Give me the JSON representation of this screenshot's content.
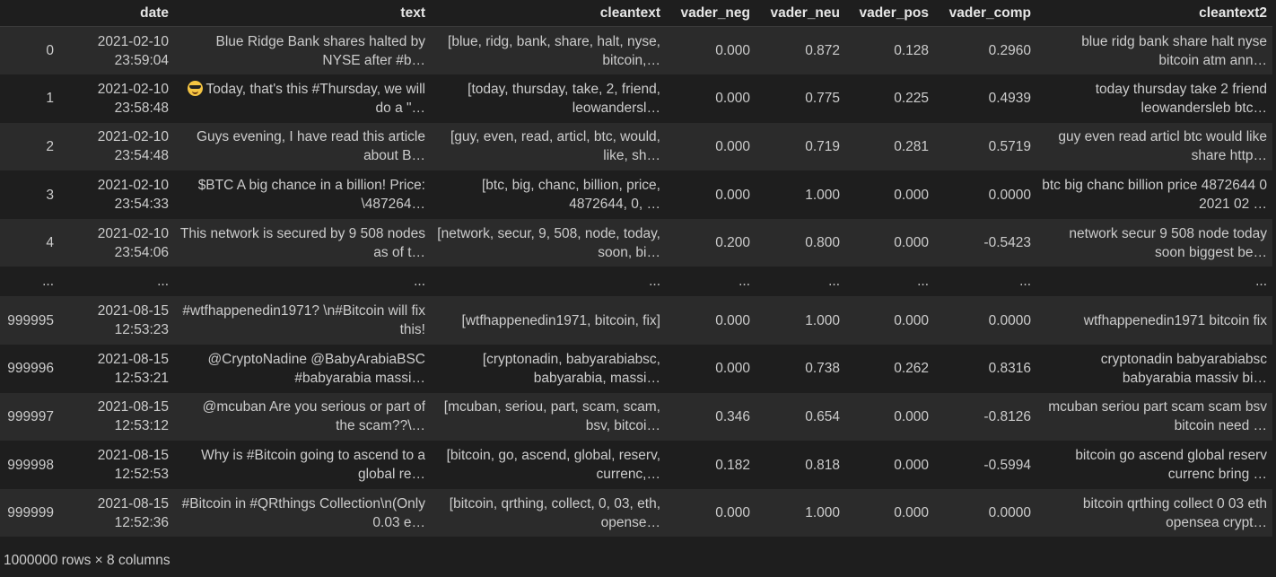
{
  "columns": [
    "",
    "date",
    "text",
    "cleantext",
    "vader_neg",
    "vader_neu",
    "vader_pos",
    "vader_comp",
    "cleantext2"
  ],
  "rows": [
    {
      "idx": "0",
      "date": "2021-02-10 23:59:04",
      "emoji": false,
      "text": "Blue Ridge Bank shares halted by NYSE after #b…",
      "cleantext": "[blue, ridg, bank, share, halt, nyse, bitcoin,…",
      "neg": "0.000",
      "neu": "0.872",
      "pos": "0.128",
      "comp": "0.2960",
      "cleantext2": "blue ridg bank share halt nyse bitcoin atm ann…"
    },
    {
      "idx": "1",
      "date": "2021-02-10 23:58:48",
      "emoji": true,
      "emoji_name": "sunglasses-emoji-icon",
      "text": "Today, that's this #Thursday, we will do a \"…",
      "cleantext": "[today, thursday, take, 2, friend, leowandersl…",
      "neg": "0.000",
      "neu": "0.775",
      "pos": "0.225",
      "comp": "0.4939",
      "cleantext2": "today thursday take 2 friend leowandersleb btc…"
    },
    {
      "idx": "2",
      "date": "2021-02-10 23:54:48",
      "emoji": false,
      "text": "Guys evening, I have read this article about B…",
      "cleantext": "[guy, even, read, articl, btc, would, like, sh…",
      "neg": "0.000",
      "neu": "0.719",
      "pos": "0.281",
      "comp": "0.5719",
      "cleantext2": "guy even read articl btc would like share http…"
    },
    {
      "idx": "3",
      "date": "2021-02-10 23:54:33",
      "emoji": false,
      "text": "$BTC A big chance in a billion! Price: \\487264…",
      "cleantext": "[btc, big, chanc, billion, price, 4872644, 0, …",
      "neg": "0.000",
      "neu": "1.000",
      "pos": "0.000",
      "comp": "0.0000",
      "cleantext2": "btc big chanc billion price 4872644 0 2021 02 …"
    },
    {
      "idx": "4",
      "date": "2021-02-10 23:54:06",
      "emoji": false,
      "text": "This network is secured by 9 508 nodes as of t…",
      "cleantext": "[network, secur, 9, 508, node, today, soon, bi…",
      "neg": "0.200",
      "neu": "0.800",
      "pos": "0.000",
      "comp": "-0.5423",
      "cleantext2": "network secur 9 508 node today soon biggest be…"
    },
    {
      "ellipsis": true,
      "idx": "...",
      "date": "...",
      "text": "...",
      "cleantext": "...",
      "neg": "...",
      "neu": "...",
      "pos": "...",
      "comp": "...",
      "cleantext2": "..."
    },
    {
      "idx": "999995",
      "date": "2021-08-15 12:53:23",
      "emoji": false,
      "text": "#wtfhappenedin1971? \\n#Bitcoin will fix this!",
      "cleantext": "[wtfhappenedin1971, bitcoin, fix]",
      "neg": "0.000",
      "neu": "1.000",
      "pos": "0.000",
      "comp": "0.0000",
      "cleantext2": "wtfhappenedin1971 bitcoin fix"
    },
    {
      "idx": "999996",
      "date": "2021-08-15 12:53:21",
      "emoji": false,
      "text": "@CryptoNadine @BabyArabiaBSC #babyarabia massi…",
      "cleantext": "[cryptonadin, babyarabiabsc, babyarabia, massi…",
      "neg": "0.000",
      "neu": "0.738",
      "pos": "0.262",
      "comp": "0.8316",
      "cleantext2": "cryptonadin babyarabiabsc babyarabia massiv bi…"
    },
    {
      "idx": "999997",
      "date": "2021-08-15 12:53:12",
      "emoji": false,
      "text": "@mcuban Are you serious or part of the scam??\\…",
      "cleantext": "[mcuban, seriou, part, scam, scam, bsv, bitcoi…",
      "neg": "0.346",
      "neu": "0.654",
      "pos": "0.000",
      "comp": "-0.8126",
      "cleantext2": "mcuban seriou part scam scam bsv bitcoin need …"
    },
    {
      "idx": "999998",
      "date": "2021-08-15 12:52:53",
      "emoji": false,
      "text": "Why is #Bitcoin going to ascend to a global re…",
      "cleantext": "[bitcoin, go, ascend, global, reserv, currenc,…",
      "neg": "0.182",
      "neu": "0.818",
      "pos": "0.000",
      "comp": "-0.5994",
      "cleantext2": "bitcoin go ascend global reserv currenc bring …"
    },
    {
      "idx": "999999",
      "date": "2021-08-15 12:52:36",
      "emoji": false,
      "text": "#Bitcoin in #QRthings Collection\\n(Only 0.03 e…",
      "cleantext": "[bitcoin, qrthing, collect, 0, 03, eth, opense…",
      "neg": "0.000",
      "neu": "1.000",
      "pos": "0.000",
      "comp": "0.0000",
      "cleantext2": "bitcoin qrthing collect 0 03 eth opensea crypt…"
    }
  ],
  "footer": "1000000 rows × 8 columns"
}
